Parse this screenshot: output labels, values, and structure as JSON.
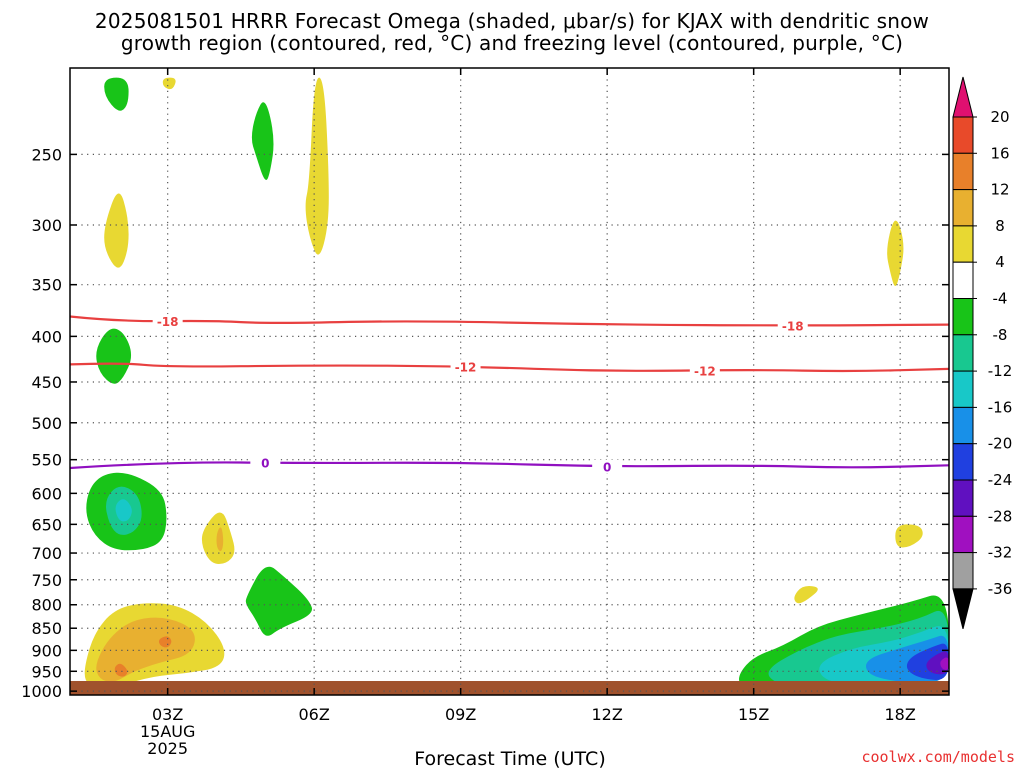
{
  "title": {
    "line1": "2025081501 HRRR Forecast Omega (shaded, μbar/s) for KJAX with dendritic snow",
    "line2": "growth region (contoured, red, °C) and freezing level (contoured, purple, °C)"
  },
  "credit": "coolwx.com/models",
  "colors": {
    "neg4_plus4": "#ffffff",
    "pos4_8": "#e8d832",
    "pos8_12": "#e8b030",
    "pos12_16": "#e8802a",
    "pos16_20": "#e84a2a",
    "pos20": "#e01070",
    "neg8_4": "#18c418",
    "neg12_8": "#18c890",
    "neg16_12": "#18c8c8",
    "neg20_16": "#1890e8",
    "neg24_20": "#2040e0",
    "neg28_24": "#6010c0",
    "neg32_28": "#a010c0",
    "neg36_32": "#a0a0a0",
    "neg36": "#000000",
    "dgz_line": "#e84040",
    "freezing_line": "#9010c0",
    "ground": "#a0522d"
  },
  "chart_data": {
    "type": "heatmap",
    "title": "2025081501 HRRR Forecast Omega (shaded, μbar/s) for KJAX with dendritic snow growth region (contoured, red, °C) and freezing level (contoured, purple, °C)",
    "xlabel": "Forecast Time (UTC)",
    "ylabel": "",
    "x_ticks": [
      "03Z",
      "06Z",
      "09Z",
      "12Z",
      "15Z",
      "18Z"
    ],
    "x_tick_hours": [
      3,
      6,
      9,
      12,
      15,
      18
    ],
    "x_date_label": [
      "15AUG",
      "2025"
    ],
    "xlim": [
      1.0,
      19.0
    ],
    "y_ticks": [
      250,
      300,
      350,
      400,
      450,
      500,
      550,
      600,
      650,
      700,
      750,
      800,
      850,
      900,
      950,
      1000
    ],
    "ylim_hPa": [
      200,
      1010
    ],
    "y_scale": "log-pressure",
    "grid": true,
    "colorbar": {
      "labels": [
        20,
        16,
        12,
        8,
        4,
        -4,
        -8,
        -12,
        -16,
        -20,
        -24,
        -28,
        -32,
        -36
      ],
      "unit": "μbar/s"
    },
    "contours": [
      {
        "name": "-18",
        "color": "dgz_line",
        "points": [
          [
            1.0,
            380
          ],
          [
            2.0,
            385
          ],
          [
            4.0,
            384
          ],
          [
            5.0,
            387
          ],
          [
            8.0,
            384
          ],
          [
            12.0,
            388
          ],
          [
            16.0,
            389
          ],
          [
            19.0,
            388
          ]
        ],
        "labels": [
          [
            3.0,
            "-18"
          ],
          [
            15.8,
            "-18"
          ]
        ]
      },
      {
        "name": "-12",
        "color": "dgz_line",
        "points": [
          [
            1.0,
            430
          ],
          [
            2.0,
            428
          ],
          [
            3.0,
            433
          ],
          [
            6.0,
            431
          ],
          [
            9.0,
            432
          ],
          [
            12.0,
            438
          ],
          [
            15.0,
            436
          ],
          [
            17.0,
            438
          ],
          [
            19.0,
            435
          ]
        ],
        "labels": [
          [
            9.1,
            "-12"
          ],
          [
            14.0,
            "-12"
          ]
        ]
      },
      {
        "name": "0",
        "color": "freezing_line",
        "points": [
          [
            1.0,
            562
          ],
          [
            3.0,
            553
          ],
          [
            6.0,
            555
          ],
          [
            9.0,
            554
          ],
          [
            12.0,
            560
          ],
          [
            15.0,
            558
          ],
          [
            17.0,
            562
          ],
          [
            19.0,
            558
          ]
        ],
        "labels": [
          [
            5.0,
            "0"
          ],
          [
            12.0,
            "0"
          ]
        ]
      }
    ],
    "shaded_regions": [
      {
        "value": "-4 to -8",
        "color": "neg8_4",
        "points": [
          [
            1.7,
            205
          ],
          [
            2.2,
            205
          ],
          [
            2.2,
            220
          ],
          [
            2.0,
            225
          ],
          [
            1.7,
            215
          ]
        ]
      },
      {
        "value": "4 to 8",
        "color": "pos4_8",
        "points": [
          [
            2.9,
            205
          ],
          [
            3.2,
            205
          ],
          [
            3.1,
            212
          ],
          [
            2.9,
            210
          ]
        ]
      },
      {
        "value": "-4 to -8",
        "color": "neg8_4",
        "points": [
          [
            4.8,
            225
          ],
          [
            5.0,
            215
          ],
          [
            5.2,
            240
          ],
          [
            5.1,
            262
          ],
          [
            5.0,
            270
          ],
          [
            4.8,
            250
          ],
          [
            4.7,
            240
          ]
        ]
      },
      {
        "value": "4 to 8",
        "color": "pos4_8",
        "points": [
          [
            5.9,
            270
          ],
          [
            6.0,
            205
          ],
          [
            6.2,
            205
          ],
          [
            6.3,
            260
          ],
          [
            6.3,
            300
          ],
          [
            6.1,
            330
          ],
          [
            5.9,
            310
          ],
          [
            5.8,
            285
          ]
        ]
      },
      {
        "value": "4 to 8",
        "color": "pos4_8",
        "points": [
          [
            1.7,
            300
          ],
          [
            2.0,
            270
          ],
          [
            2.2,
            295
          ],
          [
            2.2,
            320
          ],
          [
            2.0,
            340
          ],
          [
            1.7,
            320
          ]
        ]
      },
      {
        "value": "4 to 8",
        "color": "pos4_8",
        "points": [
          [
            17.7,
            320
          ],
          [
            17.9,
            290
          ],
          [
            18.1,
            315
          ],
          [
            18.0,
            340
          ],
          [
            17.9,
            355
          ],
          [
            17.8,
            340
          ]
        ]
      },
      {
        "value": "-4 to -8",
        "color": "neg8_4",
        "points": [
          [
            1.5,
            415
          ],
          [
            1.8,
            390
          ],
          [
            2.1,
            395
          ],
          [
            2.3,
            420
          ],
          [
            2.1,
            445
          ],
          [
            1.9,
            455
          ],
          [
            1.6,
            440
          ]
        ]
      },
      {
        "value": "-4 to -8",
        "color": "neg8_4",
        "points": [
          [
            1.4,
            590
          ],
          [
            1.7,
            570
          ],
          [
            2.2,
            568
          ],
          [
            2.9,
            595
          ],
          [
            3.0,
            640
          ],
          [
            2.9,
            680
          ],
          [
            2.5,
            695
          ],
          [
            1.9,
            695
          ],
          [
            1.5,
            670
          ],
          [
            1.3,
            630
          ]
        ]
      },
      {
        "value": "-8 to -12",
        "color": "neg12_8",
        "points": [
          [
            1.7,
            610
          ],
          [
            2.0,
            585
          ],
          [
            2.4,
            600
          ],
          [
            2.5,
            640
          ],
          [
            2.3,
            665
          ],
          [
            2.0,
            670
          ],
          [
            1.8,
            650
          ]
        ]
      },
      {
        "value": "-12 to -16",
        "color": "neg16_12",
        "points": [
          [
            1.9,
            620
          ],
          [
            2.1,
            605
          ],
          [
            2.3,
            625
          ],
          [
            2.2,
            645
          ],
          [
            2.0,
            645
          ]
        ]
      },
      {
        "value": "4 to 8",
        "color": "pos4_8",
        "points": [
          [
            3.7,
            660
          ],
          [
            4.1,
            620
          ],
          [
            4.3,
            665
          ],
          [
            4.4,
            700
          ],
          [
            4.2,
            720
          ],
          [
            3.9,
            720
          ],
          [
            3.7,
            690
          ]
        ]
      },
      {
        "value": "8 to 12",
        "color": "pos8_12",
        "points": [
          [
            4.0,
            665
          ],
          [
            4.1,
            650
          ],
          [
            4.15,
            680
          ],
          [
            4.1,
            700
          ],
          [
            4.0,
            690
          ]
        ]
      },
      {
        "value": "-4 to -8",
        "color": "neg8_4",
        "points": [
          [
            4.6,
            785
          ],
          [
            5.0,
            715
          ],
          [
            5.4,
            745
          ],
          [
            5.9,
            790
          ],
          [
            6.0,
            820
          ],
          [
            5.3,
            850
          ],
          [
            5.0,
            875
          ],
          [
            4.8,
            830
          ],
          [
            4.6,
            800
          ]
        ]
      },
      {
        "value": "4 to 8",
        "color": "pos4_8",
        "points": [
          [
            1.3,
            935
          ],
          [
            1.5,
            860
          ],
          [
            1.9,
            810
          ],
          [
            2.5,
            795
          ],
          [
            3.2,
            800
          ],
          [
            3.8,
            835
          ],
          [
            4.2,
            895
          ],
          [
            4.1,
            940
          ],
          [
            3.4,
            955
          ],
          [
            2.7,
            962
          ],
          [
            1.9,
            990
          ],
          [
            1.5,
            990
          ],
          [
            1.3,
            975
          ]
        ]
      },
      {
        "value": "8 to 12",
        "color": "pos8_12",
        "points": [
          [
            1.5,
            935
          ],
          [
            1.8,
            870
          ],
          [
            2.3,
            830
          ],
          [
            3.0,
            825
          ],
          [
            3.6,
            855
          ],
          [
            3.5,
            910
          ],
          [
            2.8,
            930
          ],
          [
            2.3,
            950
          ],
          [
            1.9,
            980
          ],
          [
            1.6,
            970
          ]
        ]
      },
      {
        "value": "12 to 16",
        "color": "pos12_16",
        "points": [
          [
            1.9,
            942
          ],
          [
            2.0,
            930
          ],
          [
            2.1,
            935
          ],
          [
            2.2,
            952
          ],
          [
            2.1,
            965
          ],
          [
            1.95,
            960
          ]
        ]
      },
      {
        "value": "12 to 16",
        "color": "pos12_16",
        "points": [
          [
            2.8,
            875
          ],
          [
            3.0,
            865
          ],
          [
            3.1,
            880
          ],
          [
            3.0,
            895
          ],
          [
            2.85,
            890
          ]
        ]
      },
      {
        "value": "4 to 8",
        "color": "pos4_8",
        "points": [
          [
            15.8,
            785
          ],
          [
            16.0,
            760
          ],
          [
            16.4,
            765
          ],
          [
            16.1,
            790
          ],
          [
            15.9,
            800
          ]
        ]
      },
      {
        "value": "4 to 8",
        "color": "pos4_8",
        "points": [
          [
            17.9,
            650
          ],
          [
            18.4,
            650
          ],
          [
            18.5,
            670
          ],
          [
            18.2,
            690
          ],
          [
            17.9,
            690
          ]
        ]
      },
      {
        "value": "-4 to -8",
        "color": "neg8_4",
        "points": [
          [
            14.7,
            955
          ],
          [
            15.0,
            915
          ],
          [
            15.6,
            890
          ],
          [
            16.3,
            845
          ],
          [
            17.2,
            820
          ],
          [
            18.2,
            795
          ],
          [
            19.0,
            770
          ],
          [
            19.0,
            1000
          ],
          [
            16.0,
            1000
          ],
          [
            15.0,
            995
          ],
          [
            14.7,
            985
          ]
        ]
      },
      {
        "value": "-8 to -12",
        "color": "neg12_8",
        "points": [
          [
            15.2,
            950
          ],
          [
            15.9,
            900
          ],
          [
            16.7,
            865
          ],
          [
            17.6,
            850
          ],
          [
            18.4,
            830
          ],
          [
            19.0,
            800
          ],
          [
            19.0,
            995
          ],
          [
            16.3,
            995
          ],
          [
            15.5,
            985
          ]
        ]
      },
      {
        "value": "-12 to -16",
        "color": "neg16_12",
        "points": [
          [
            16.3,
            930
          ],
          [
            17.0,
            895
          ],
          [
            17.8,
            880
          ],
          [
            18.4,
            860
          ],
          [
            19.0,
            835
          ],
          [
            19.0,
            990
          ],
          [
            17.0,
            985
          ],
          [
            16.4,
            970
          ]
        ]
      },
      {
        "value": "-16 to -20",
        "color": "neg20_16",
        "points": [
          [
            17.3,
            920
          ],
          [
            18.0,
            895
          ],
          [
            18.6,
            875
          ],
          [
            19.0,
            860
          ],
          [
            19.0,
            985
          ],
          [
            17.8,
            975
          ],
          [
            17.3,
            955
          ]
        ]
      },
      {
        "value": "-20 to -24",
        "color": "neg24_20",
        "points": [
          [
            18.2,
            915
          ],
          [
            18.7,
            890
          ],
          [
            19.0,
            880
          ],
          [
            19.0,
            975
          ],
          [
            18.4,
            968
          ],
          [
            18.1,
            945
          ]
        ]
      },
      {
        "value": "-24 to -28",
        "color": "neg28_24",
        "points": [
          [
            18.5,
            930
          ],
          [
            18.8,
            905
          ],
          [
            19.0,
            900
          ],
          [
            19.0,
            960
          ],
          [
            18.6,
            955
          ]
        ]
      },
      {
        "value": "-28 to -32",
        "color": "neg32_28",
        "points": [
          [
            18.8,
            925
          ],
          [
            19.0,
            912
          ],
          [
            19.0,
            948
          ],
          [
            18.85,
            945
          ]
        ]
      }
    ]
  }
}
